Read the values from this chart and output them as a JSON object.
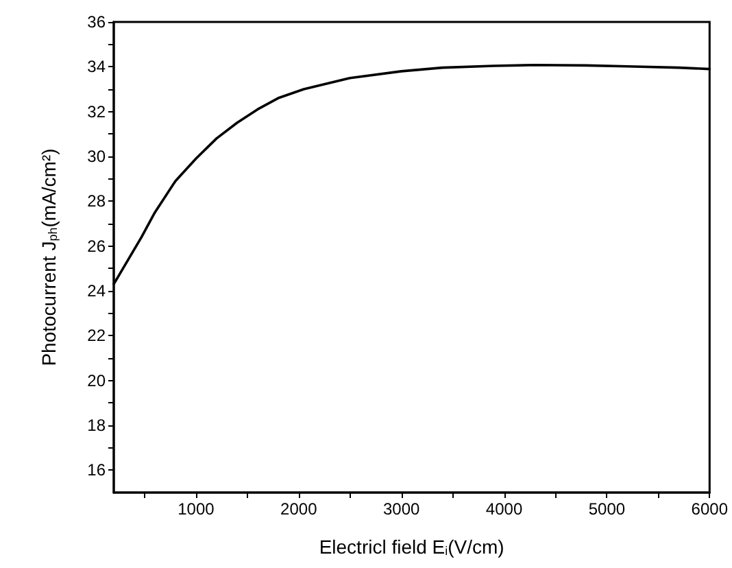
{
  "chart_data": {
    "type": "line",
    "xlabel": "Electricl field E$_{i}$(V/cm)",
    "ylabel": "Photocurrent J$_{ph}$(mA/cm²)",
    "x": [
      200,
      470,
      600,
      800,
      1000,
      1200,
      1400,
      1600,
      1800,
      2050,
      2500,
      3000,
      3400,
      3900,
      4300,
      4800,
      5200,
      5700,
      6000
    ],
    "series": [
      {
        "color": "#000000",
        "values": [
          24.3,
          26.4,
          27.5,
          28.9,
          29.9,
          30.8,
          31.5,
          32.1,
          32.6,
          33.0,
          33.5,
          33.8,
          33.96,
          34.04,
          34.08,
          34.06,
          34.02,
          33.96,
          33.9
        ]
      }
    ],
    "xlim": [
      200,
      6000
    ],
    "xticks": [
      {
        "value": 500,
        "label": null
      },
      1000,
      {
        "value": 1500,
        "label": null
      },
      2000,
      {
        "value": 2500,
        "label": null
      },
      3000,
      {
        "value": 3500,
        "label": null
      },
      4000,
      {
        "value": 4500,
        "label": null
      },
      5000,
      {
        "value": 5500,
        "label": null
      },
      6000
    ],
    "ylim": [
      15,
      36
    ],
    "yticks": [
      16,
      {
        "value": 17,
        "label": null
      },
      18,
      {
        "value": 19,
        "label": null
      },
      20,
      {
        "value": 21,
        "label": null
      },
      22,
      {
        "value": 23,
        "label": null
      },
      24,
      {
        "value": 25,
        "label": null
      },
      26,
      {
        "value": 27,
        "label": null
      },
      28,
      {
        "value": 29,
        "label": null
      },
      30,
      {
        "value": 31,
        "label": null
      },
      32,
      {
        "value": 33,
        "label": null
      },
      34,
      {
        "value": 35,
        "label": null
      },
      36
    ],
    "grid": false,
    "marker": "none",
    "line_style": "solid"
  }
}
